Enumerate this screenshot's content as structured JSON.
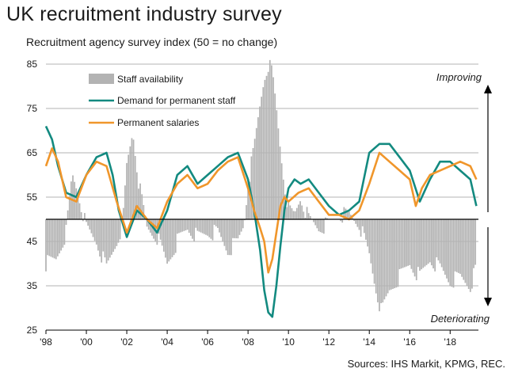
{
  "title": "UK recruitment industry survey",
  "subtitle": "Recruitment agency survey index (50 = no change)",
  "source": "Sources: IHS Markit, KPMG, REC.",
  "chart_data": {
    "type": "line",
    "baseline": 50,
    "ylim": [
      25,
      85
    ],
    "yticks": [
      "85",
      "75",
      "65",
      "55",
      "45",
      "35",
      "25"
    ],
    "ytick_values": [
      85,
      75,
      65,
      55,
      45,
      35,
      25
    ],
    "xlim": [
      1998.0,
      2019.4
    ],
    "xticks": [
      "'98",
      "'00",
      "'02",
      "'04",
      "'06",
      "'08",
      "'10",
      "'12",
      "'14",
      "'16",
      "'18"
    ],
    "xtick_values": [
      1998,
      2000,
      2002,
      2004,
      2006,
      2008,
      2010,
      2012,
      2014,
      2016,
      2018
    ],
    "grid": "horizontal",
    "legend_position": "top-left",
    "annotations": {
      "up": "Improving",
      "down": "Deteriorating"
    },
    "series": [
      {
        "name": "Staff availability",
        "kind": "bar",
        "color": "#b3b3b3",
        "x": [
          1998.0,
          1998.5,
          1999.0,
          1999.3,
          1999.6,
          2000.0,
          2000.5,
          2001.0,
          2001.5,
          2001.8,
          2002.0,
          2002.3,
          2002.6,
          2003.0,
          2003.5,
          2004.0,
          2004.5,
          2005.0,
          2005.5,
          2006.0,
          2006.5,
          2007.0,
          2007.5,
          2007.8,
          2008.0,
          2008.3,
          2008.6,
          2008.8,
          2009.0,
          2009.2,
          2009.4,
          2009.6,
          2009.8,
          2010.0,
          2010.3,
          2010.6,
          2011.0,
          2011.5,
          2012.0,
          2012.5,
          2013.0,
          2013.5,
          2014.0,
          2014.3,
          2014.6,
          2015.0,
          2015.5,
          2016.0,
          2016.5,
          2017.0,
          2017.5,
          2018.0,
          2018.5,
          2019.0,
          2019.3
        ],
        "values": [
          40,
          41,
          47,
          60,
          56,
          48,
          45,
          39,
          45,
          49,
          62,
          70,
          58,
          48,
          46,
          40,
          45,
          48,
          46,
          47,
          47,
          43,
          45,
          49,
          58,
          66,
          76,
          82,
          85,
          83,
          75,
          66,
          58,
          52,
          51,
          55,
          50,
          48,
          49,
          51,
          51,
          49,
          42,
          35,
          29,
          34,
          37,
          40,
          37,
          41,
          39,
          36,
          37,
          35,
          39
        ]
      },
      {
        "name": "Demand for permanent staff",
        "kind": "line",
        "color": "#138a80",
        "x": [
          1998.0,
          1998.3,
          1998.6,
          1999.0,
          1999.5,
          2000.0,
          2000.5,
          2001.0,
          2001.3,
          2001.6,
          2002.0,
          2002.5,
          2003.0,
          2003.5,
          2004.0,
          2004.5,
          2005.0,
          2005.5,
          2006.0,
          2006.5,
          2007.0,
          2007.5,
          2008.0,
          2008.3,
          2008.6,
          2008.8,
          2009.0,
          2009.2,
          2009.4,
          2009.6,
          2009.8,
          2010.0,
          2010.3,
          2010.6,
          2011.0,
          2011.5,
          2012.0,
          2012.5,
          2013.0,
          2013.5,
          2014.0,
          2014.5,
          2015.0,
          2015.5,
          2016.0,
          2016.5,
          2017.0,
          2017.5,
          2018.0,
          2018.5,
          2019.0,
          2019.3
        ],
        "values": [
          71,
          68,
          62,
          56,
          55,
          60,
          64,
          65,
          60,
          52,
          46,
          52,
          50,
          47,
          52,
          60,
          62,
          58,
          60,
          62,
          64,
          65,
          59,
          52,
          43,
          34,
          29,
          28,
          35,
          44,
          52,
          57,
          59,
          58,
          59,
          56,
          53,
          51,
          52,
          54,
          65,
          67,
          67,
          64,
          61,
          54,
          59,
          63,
          63,
          61,
          59,
          53
        ]
      },
      {
        "name": "Permanent salaries",
        "kind": "line",
        "color": "#f0962b",
        "x": [
          1998.0,
          1998.3,
          1998.6,
          1999.0,
          1999.5,
          2000.0,
          2000.5,
          2001.0,
          2001.5,
          2002.0,
          2002.5,
          2003.0,
          2003.5,
          2004.0,
          2004.5,
          2005.0,
          2005.5,
          2006.0,
          2006.5,
          2007.0,
          2007.5,
          2008.0,
          2008.3,
          2008.6,
          2008.8,
          2009.0,
          2009.2,
          2009.4,
          2009.6,
          2009.8,
          2010.0,
          2010.5,
          2011.0,
          2011.5,
          2012.0,
          2012.5,
          2013.0,
          2013.5,
          2014.0,
          2014.5,
          2015.0,
          2015.5,
          2016.0,
          2016.3,
          2016.6,
          2017.0,
          2017.5,
          2018.0,
          2018.5,
          2019.0,
          2019.3
        ],
        "values": [
          62,
          66,
          63,
          55,
          54,
          60,
          63,
          62,
          54,
          47,
          53,
          50,
          48,
          54,
          58,
          60,
          57,
          58,
          61,
          63,
          64,
          57,
          52,
          48,
          45,
          38,
          41,
          47,
          53,
          55,
          54,
          56,
          57,
          54,
          51,
          51,
          50,
          52,
          58,
          65,
          63,
          61,
          59,
          53,
          57,
          60,
          61,
          62,
          63,
          62,
          59
        ]
      }
    ]
  }
}
